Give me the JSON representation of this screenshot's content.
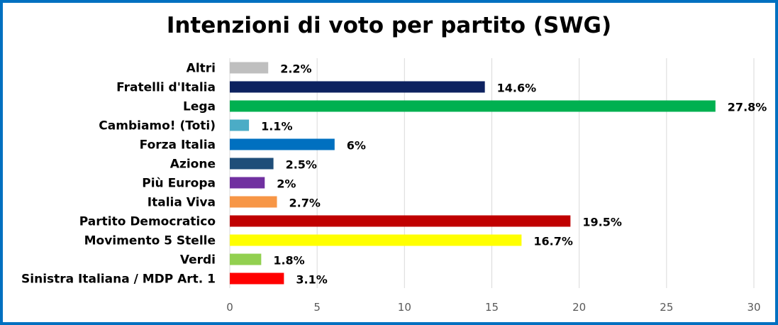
{
  "chart_data": {
    "type": "bar",
    "orientation": "horizontal",
    "title": "Intenzioni di voto per partito (SWG)",
    "categories": [
      "Altri",
      "Fratelli d'Italia",
      "Lega",
      "Cambiamo! (Toti)",
      "Forza Italia",
      "Azione",
      "Più Europa",
      "Italia Viva",
      "Partito Democratico",
      "Movimento 5 Stelle",
      "Verdi",
      "Sinistra Italiana / MDP Art. 1"
    ],
    "values": [
      2.2,
      14.6,
      27.8,
      1.1,
      6,
      2.5,
      2,
      2.7,
      19.5,
      16.7,
      1.8,
      3.1
    ],
    "value_labels": [
      "2.2%",
      "14.6%",
      "27.8%",
      "1.1%",
      "6%",
      "2.5%",
      "2%",
      "2.7%",
      "19.5%",
      "16.7%",
      "1.8%",
      "3.1%"
    ],
    "colors": [
      "#bfbfbf",
      "#0d2260",
      "#00b050",
      "#4bacc6",
      "#0070c0",
      "#1f4e79",
      "#7030a0",
      "#f79646",
      "#c00000",
      "#ffff00",
      "#92d050",
      "#ff0000"
    ],
    "xlim": [
      0,
      30
    ],
    "xticks": [
      0,
      5,
      10,
      15,
      20,
      25,
      30
    ],
    "grid": true,
    "xlabel": "",
    "ylabel": ""
  },
  "frame_color": "#0070c0",
  "grid_color": "#d9d9d9"
}
